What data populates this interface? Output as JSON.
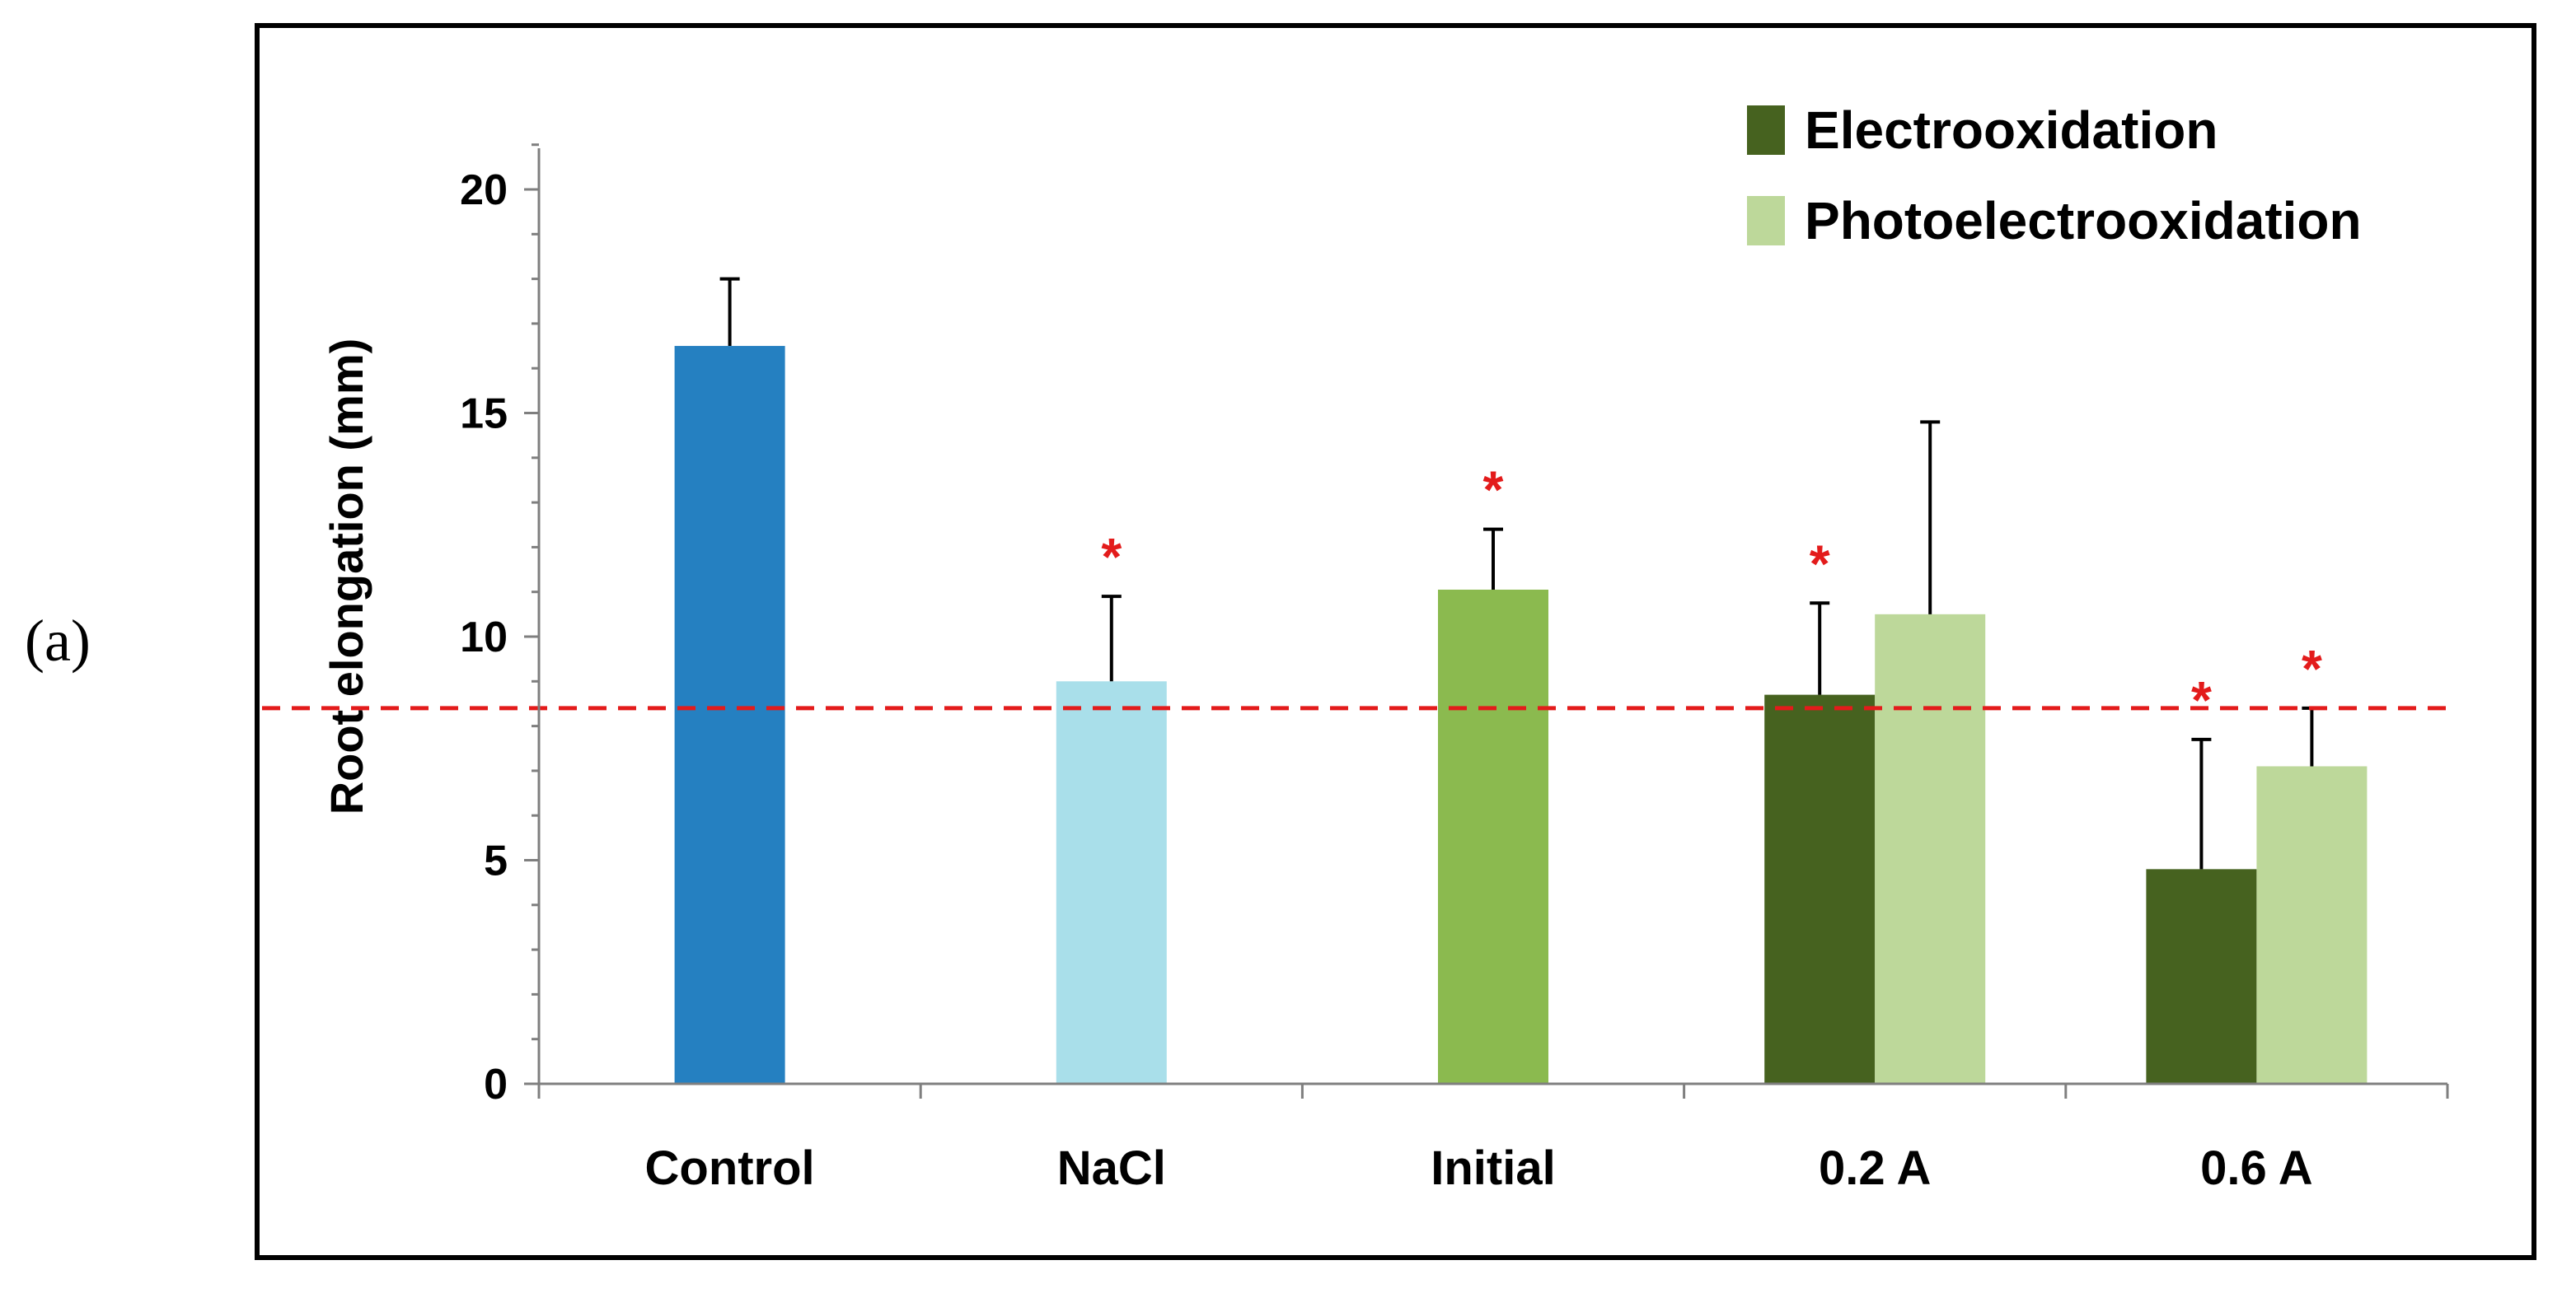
{
  "panel_label": "(a)",
  "chart_data": {
    "type": "bar",
    "categories": [
      "Control",
      "NaCl",
      "Initial",
      "0.2 A",
      "0.6 A"
    ],
    "ylabel": "Root elongation (mm)",
    "xlabel": "",
    "ylim": [
      0,
      20
    ],
    "yticks": [
      0,
      5,
      10,
      15,
      20
    ],
    "legend": {
      "placement": "top-right",
      "entries": [
        {
          "name": "Electrooxidation",
          "color": "#46621F"
        },
        {
          "name": "Photoelectrooxidation",
          "color": "#BDD89A"
        }
      ]
    },
    "reference_line": {
      "value": 8.4,
      "color": "#E31B1B",
      "style": "dashed"
    },
    "significance_marker": "*",
    "significance_color": "#E31B1B",
    "bars": [
      {
        "category": "Control",
        "series": null,
        "value": 16.5,
        "error": 1.5,
        "color": "#2580C1",
        "significant": false
      },
      {
        "category": "NaCl",
        "series": null,
        "value": 9.0,
        "error": 1.9,
        "color": "#A9DFEA",
        "significant": true
      },
      {
        "category": "Initial",
        "series": null,
        "value": 11.05,
        "error": 1.35,
        "color": "#8BBA4F",
        "significant": true
      },
      {
        "category": "0.2 A",
        "series": "Electrooxidation",
        "value": 8.7,
        "error": 2.05,
        "color": "#46621F",
        "significant": true
      },
      {
        "category": "0.2 A",
        "series": "Photoelectrooxidation",
        "value": 10.5,
        "error": 4.3,
        "color": "#BDD89A",
        "significant": false
      },
      {
        "category": "0.6 A",
        "series": "Electrooxidation",
        "value": 4.8,
        "error": 2.9,
        "color": "#46621F",
        "significant": true
      },
      {
        "category": "0.6 A",
        "series": "Photoelectrooxidation",
        "value": 7.1,
        "error": 1.3,
        "color": "#BDD89A",
        "significant": true
      }
    ]
  }
}
